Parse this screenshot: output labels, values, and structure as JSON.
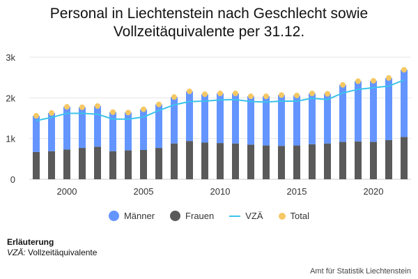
{
  "title_line1": "Personal in Liechtenstein nach Geschlecht sowie",
  "title_line2": "Vollzeitäquivalente per 31.12.",
  "legend": {
    "maenner": "Männer",
    "frauen": "Frauen",
    "vza": "VZÄ",
    "total": "Total"
  },
  "colors": {
    "maenner": "#6495ff",
    "frauen": "#5a5a5a",
    "vza": "#3cc3eb",
    "total": "#f5c864",
    "grid": "#e6e6e6"
  },
  "note": {
    "heading": "Erläuterung",
    "abbr": "VZÄ:",
    "text": "Vollzeitäquivalente"
  },
  "source": "Amt für Statistik Liechtenstein",
  "chart_data": {
    "type": "bar",
    "stacked": true,
    "x": [
      1998,
      1999,
      2000,
      2001,
      2002,
      2003,
      2004,
      2005,
      2006,
      2007,
      2008,
      2009,
      2010,
      2011,
      2012,
      2013,
      2014,
      2015,
      2016,
      2017,
      2018,
      2019,
      2020,
      2021,
      2022
    ],
    "x_ticks": [
      2000,
      2005,
      2010,
      2015,
      2020
    ],
    "y_ticks": [
      0,
      1000,
      2000,
      3000
    ],
    "y_tick_labels": [
      "0",
      "1k",
      "2k",
      "3k"
    ],
    "ylim": [
      0,
      3000
    ],
    "series": [
      {
        "name": "Frauen",
        "kind": "bar",
        "values": [
          670,
          690,
          730,
          770,
          800,
          690,
          710,
          720,
          770,
          880,
          940,
          900,
          890,
          880,
          850,
          830,
          820,
          830,
          860,
          880,
          920,
          930,
          920,
          960,
          1040
        ]
      },
      {
        "name": "Männer",
        "kind": "bar",
        "values": [
          890,
          940,
          1050,
          1000,
          1000,
          960,
          930,
          1000,
          1070,
          1140,
          1220,
          1190,
          1220,
          1230,
          1190,
          1210,
          1250,
          1230,
          1250,
          1220,
          1400,
          1480,
          1500,
          1530,
          1650
        ]
      },
      {
        "name": "VZÄ",
        "kind": "line",
        "values": [
          1440,
          1520,
          1620,
          1620,
          1600,
          1480,
          1480,
          1530,
          1690,
          1830,
          1910,
          1920,
          1950,
          1960,
          1910,
          1900,
          1920,
          1920,
          1990,
          1960,
          2120,
          2210,
          2250,
          2290,
          2440
        ]
      },
      {
        "name": "Total",
        "kind": "scatter",
        "values": [
          1560,
          1630,
          1780,
          1770,
          1800,
          1650,
          1640,
          1720,
          1840,
          2020,
          2160,
          2090,
          2110,
          2110,
          2040,
          2040,
          2070,
          2060,
          2110,
          2100,
          2320,
          2410,
          2420,
          2490,
          2690
        ]
      }
    ],
    "legend_position": "bottom",
    "grid": true
  }
}
